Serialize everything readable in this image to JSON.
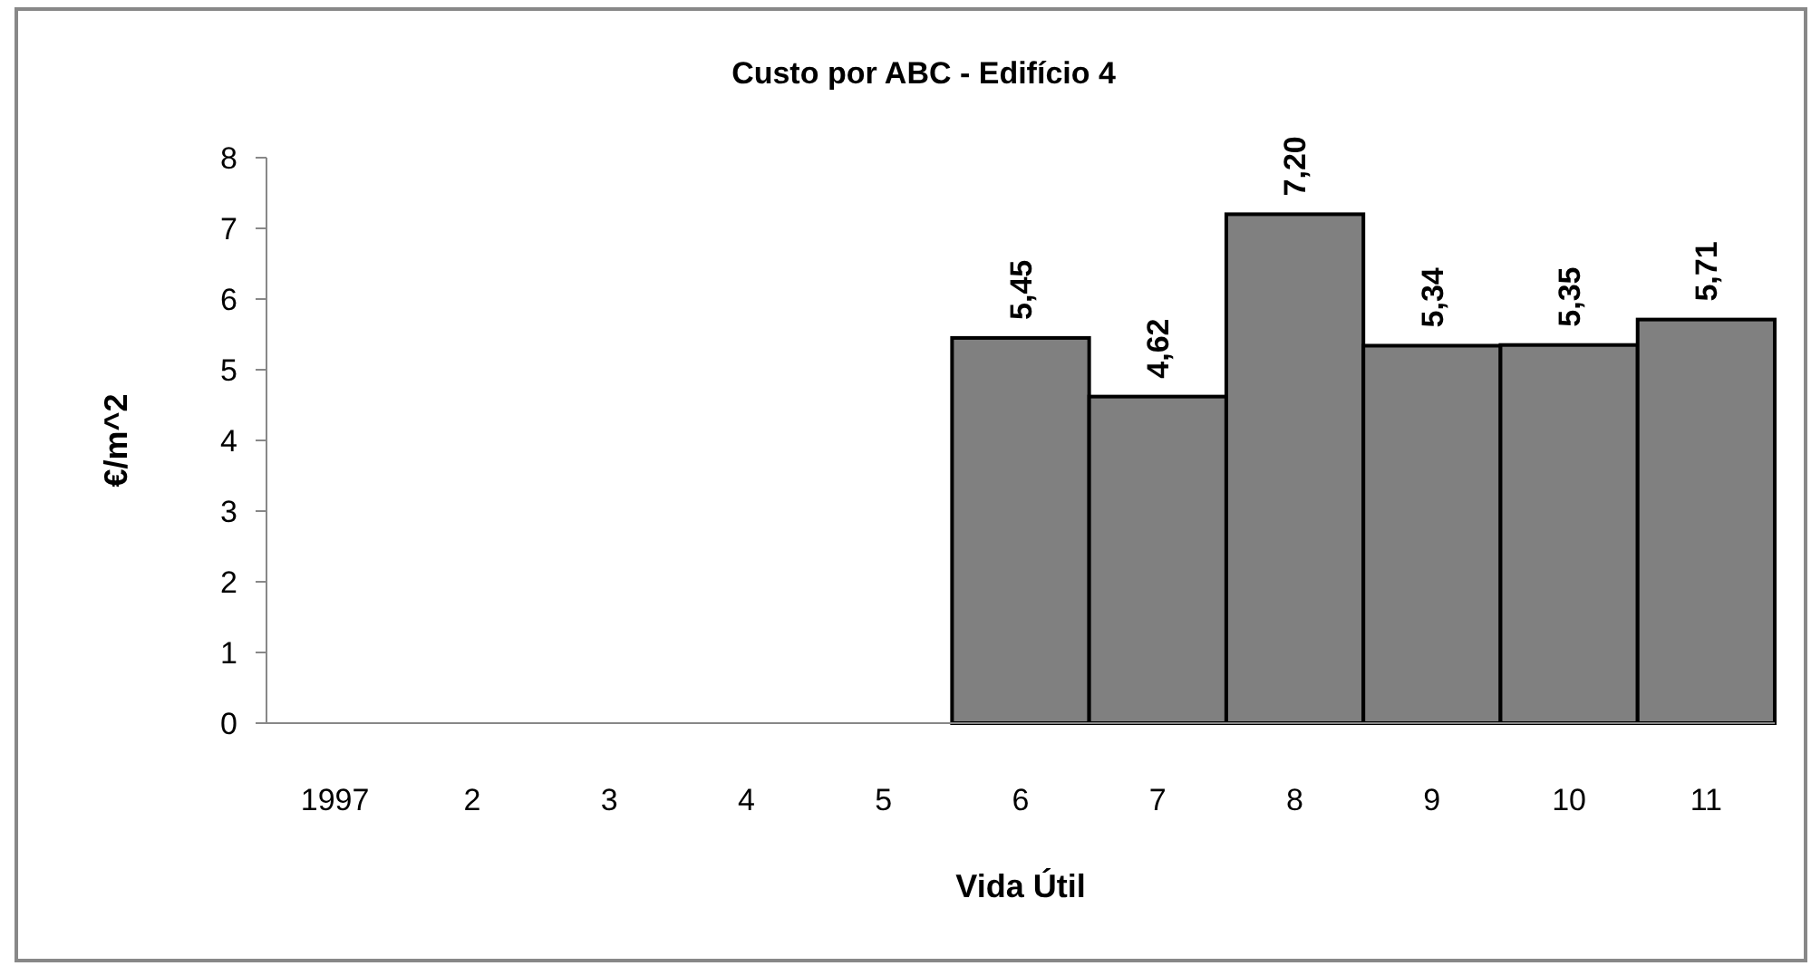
{
  "chart_data": {
    "type": "bar",
    "title": "Custo por ABC - Edifício 4",
    "xlabel": "Vida Útil",
    "ylabel": "€/m^2",
    "categories": [
      "1997",
      "2",
      "3",
      "4",
      "5",
      "6",
      "7",
      "8",
      "9",
      "10",
      "11"
    ],
    "values": [
      null,
      null,
      null,
      null,
      null,
      5.45,
      4.62,
      7.2,
      5.34,
      5.35,
      5.71
    ],
    "value_labels": [
      null,
      null,
      null,
      null,
      null,
      "5,45",
      "4,62",
      "7,20",
      "5,34",
      "5,35",
      "5,71"
    ],
    "color": "#808080",
    "ylim": [
      0,
      8
    ],
    "yticks": [
      0,
      1,
      2,
      3,
      4,
      5,
      6,
      7,
      8
    ],
    "grid": false
  }
}
